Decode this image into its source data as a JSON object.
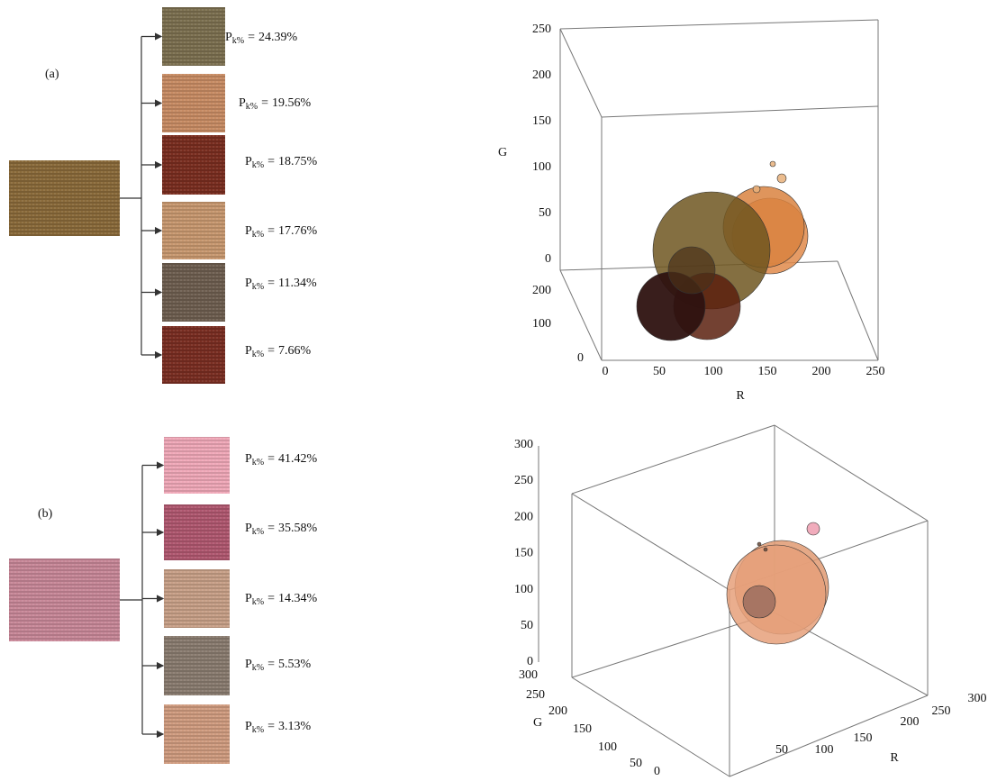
{
  "symbol": {
    "main": "P",
    "subscript": "k%",
    "equals": "="
  },
  "panels": [
    {
      "label": "(a)",
      "percentages": [
        "24.39%",
        "19.56%",
        "18.75%",
        "17.76%",
        "11.34%",
        "7.66%"
      ],
      "plot": {
        "vertical_axis_label": "G",
        "horizontal_axis_label": "R",
        "vertical_ticks": [
          0,
          50,
          100,
          150,
          200,
          250
        ],
        "horizontal_ticks": [
          0,
          50,
          100,
          150,
          200,
          250
        ],
        "depth_ticks": [
          0,
          100,
          200
        ]
      }
    },
    {
      "label": "(b)",
      "percentages": [
        "41.42%",
        "35.58%",
        "14.34%",
        "5.53%",
        "3.13%"
      ],
      "plot": {
        "depth_axis_label": "G",
        "horizontal_axis_label": "R",
        "vertical_ticks": [
          0,
          50,
          100,
          150,
          200,
          250,
          300
        ],
        "horizontal_ticks": [
          50,
          100,
          150,
          200,
          250,
          300
        ],
        "depth_ticks": [
          0,
          50,
          100,
          150,
          200,
          250,
          300
        ]
      }
    }
  ]
}
